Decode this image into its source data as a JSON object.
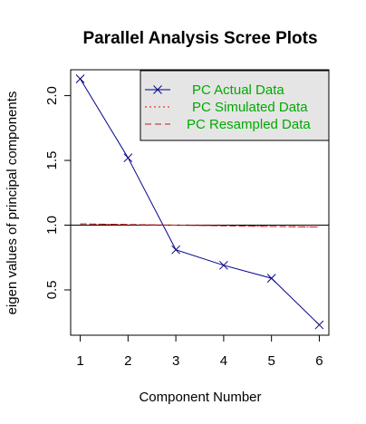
{
  "chart_data": {
    "type": "line",
    "title": "Parallel Analysis Scree Plots",
    "xlabel": "Component Number",
    "ylabel": "eigen values of principal components",
    "xlim": [
      0.8,
      6.2
    ],
    "ylim": [
      0.15,
      2.2
    ],
    "x_ticks": [
      1,
      2,
      3,
      4,
      5,
      6
    ],
    "x_tick_labels": [
      "1",
      "2",
      "3",
      "4",
      "5",
      "6"
    ],
    "y_ticks": [
      0.5,
      1.0,
      1.5,
      2.0
    ],
    "y_tick_labels": [
      "0.5",
      "1.0",
      "1.5",
      "2.0"
    ],
    "reference_line": {
      "y": 1.0,
      "color": "#000000"
    },
    "series": [
      {
        "name": "PC  Actual Data",
        "color": "#00008b",
        "style": "solid",
        "marker": "x",
        "x": [
          1,
          2,
          3,
          4,
          5,
          6
        ],
        "values": [
          2.13,
          1.52,
          0.81,
          0.69,
          0.59,
          0.23
        ]
      },
      {
        "name": "PC  Simulated Data",
        "color": "#ff0000",
        "style": "dotted",
        "marker": "",
        "x": [
          1,
          2,
          3,
          4,
          5,
          6
        ],
        "values": [
          1.01,
          1.005,
          1.0,
          0.995,
          0.99,
          0.985
        ]
      },
      {
        "name": "PC  Resampled Data",
        "color": "#b22222",
        "style": "dashed",
        "marker": "",
        "x": [
          1,
          2,
          3,
          4,
          5,
          6
        ],
        "values": [
          1.01,
          1.005,
          1.0,
          0.995,
          0.99,
          0.985
        ]
      }
    ],
    "legend": {
      "position": "top-right",
      "background": "#e5e5e5",
      "text_color": "#00aa00"
    }
  }
}
